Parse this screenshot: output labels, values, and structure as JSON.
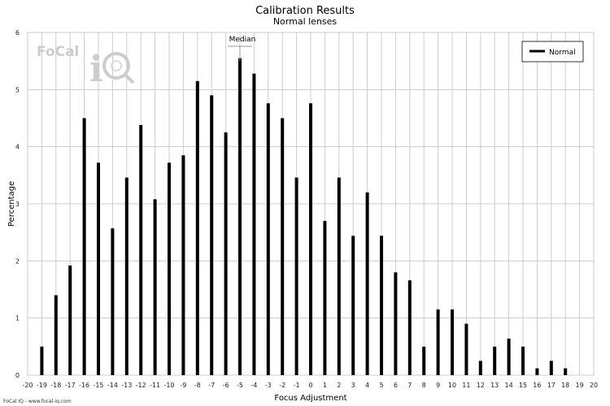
{
  "chart_data": {
    "type": "bar",
    "title": "Calibration Results",
    "subtitle": "Normal lenses",
    "xlabel": "Focus Adjustment",
    "ylabel": "Percentage",
    "xlim": [
      -20,
      20
    ],
    "ylim": [
      0,
      6
    ],
    "x_ticks": [
      -20,
      -19,
      -18,
      -17,
      -16,
      -15,
      -14,
      -13,
      -12,
      -11,
      -10,
      -9,
      -8,
      -7,
      -6,
      -5,
      -4,
      -3,
      -2,
      -1,
      0,
      1,
      2,
      3,
      4,
      5,
      6,
      7,
      8,
      9,
      10,
      11,
      12,
      13,
      14,
      15,
      16,
      17,
      18,
      19,
      20
    ],
    "y_ticks": [
      0,
      1,
      2,
      3,
      4,
      5,
      6
    ],
    "grid": true,
    "legend": {
      "position": "top-right",
      "entries": [
        "Normal"
      ]
    },
    "series": [
      {
        "name": "Normal",
        "color": "#000000",
        "x": [
          -19,
          -18,
          -17,
          -16,
          -15,
          -14,
          -13,
          -12,
          -11,
          -10,
          -9,
          -8,
          -7,
          -6,
          -5,
          -4,
          -3,
          -2,
          -1,
          0,
          1,
          2,
          3,
          4,
          5,
          6,
          7,
          8,
          9,
          10,
          11,
          12,
          13,
          14,
          15,
          16,
          17,
          18
        ],
        "values": [
          0.5,
          1.4,
          1.92,
          4.5,
          3.72,
          2.57,
          3.46,
          4.38,
          3.08,
          3.72,
          3.85,
          5.15,
          4.9,
          4.25,
          5.55,
          5.28,
          4.76,
          4.5,
          3.46,
          4.76,
          2.7,
          3.46,
          2.44,
          3.2,
          2.44,
          1.8,
          1.66,
          0.5,
          1.15,
          1.15,
          0.9,
          0.25,
          0.5,
          0.64,
          0.5,
          0.12,
          0.25,
          0.12
        ]
      }
    ],
    "annotations": [
      {
        "label": "Median",
        "x": -5
      }
    ]
  },
  "footer": "FoCal IQ - www.focal-iq.com",
  "logo_text": "FoCal iQ",
  "colors": {
    "bars": "#000000",
    "grid": "#cccccc",
    "frame": "#999999"
  }
}
